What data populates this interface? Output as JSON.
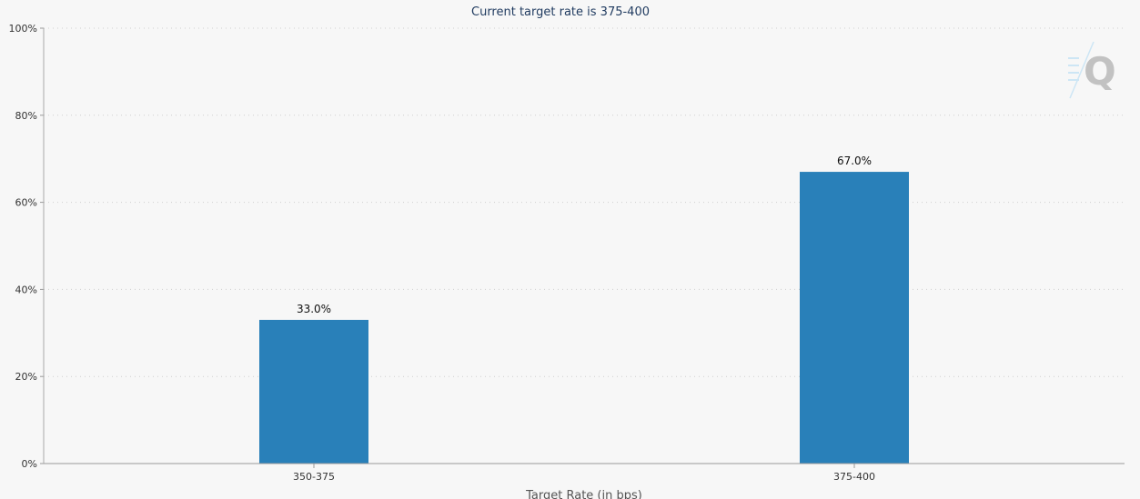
{
  "chart_data": {
    "type": "bar",
    "title": "Current target rate is 375-400",
    "xlabel": "Target Rate (in bps)",
    "ylabel": "",
    "categories": [
      "350-375",
      "375-400"
    ],
    "values": [
      33.0,
      67.0
    ],
    "data_labels": [
      "33.0%",
      "67.0%"
    ],
    "ylim": [
      0,
      100
    ],
    "y_ticks": [
      0,
      20,
      40,
      60,
      80,
      100
    ],
    "y_tick_labels": [
      "0%",
      "20%",
      "40%",
      "60%",
      "80%",
      "100%"
    ],
    "grid": true,
    "legend": "none",
    "bar_color": "#2980b9",
    "logo_icon": "q-logo-icon"
  }
}
